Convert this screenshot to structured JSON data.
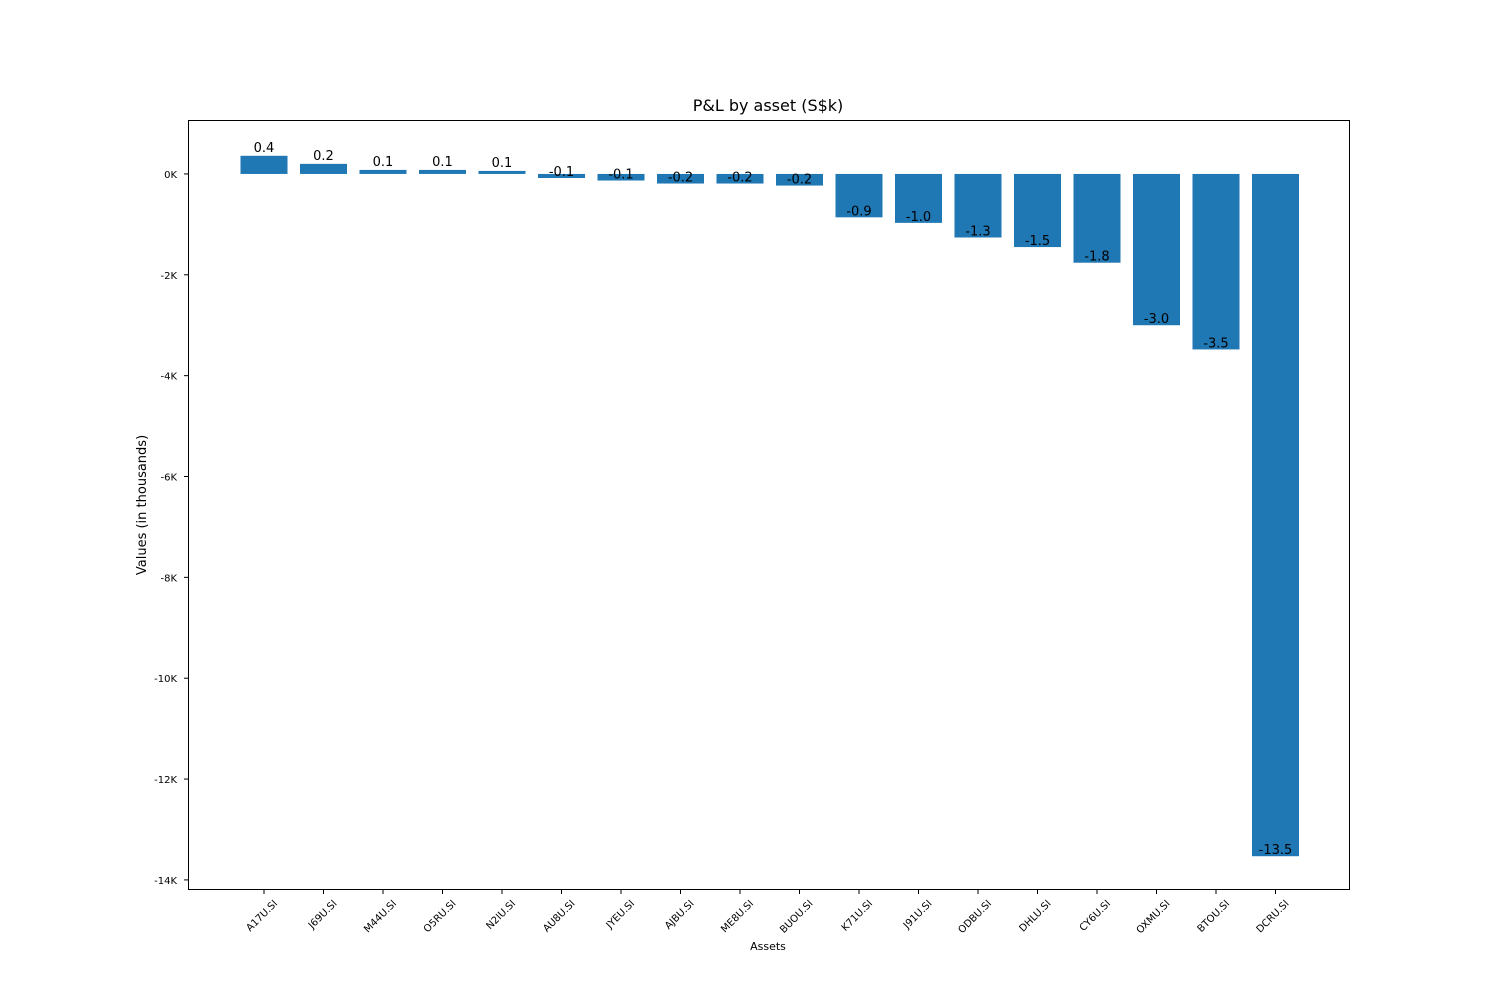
{
  "chart_data": {
    "type": "bar",
    "title": "P&L by asset (S$k)",
    "xlabel": "Assets",
    "ylabel": "Values (in thousands)",
    "ylim": [
      -14.2,
      1.05
    ],
    "yticks": [
      0,
      -2,
      -4,
      -6,
      -8,
      -10,
      -12,
      -14
    ],
    "ytick_labels": [
      "0K",
      "-2K",
      "-4K",
      "-6K",
      "-8K",
      "-10K",
      "-12K",
      "-14K"
    ],
    "categories": [
      "A17U.SI",
      "J69U.SI",
      "M44U.SI",
      "O5RU.SI",
      "N2IU.SI",
      "AU8U.SI",
      "JYEU.SI",
      "AJBU.SI",
      "ME8U.SI",
      "BUOU.SI",
      "K71U.SI",
      "J91U.SI",
      "ODBU.SI",
      "DHLU.SI",
      "CY6U.SI",
      "OXMU.SI",
      "BTOU.SI",
      "DCRU.SI"
    ],
    "values": [
      0.36,
      0.2,
      0.08,
      0.08,
      0.06,
      -0.08,
      -0.13,
      -0.19,
      -0.19,
      -0.23,
      -0.86,
      -0.97,
      -1.26,
      -1.45,
      -1.76,
      -3.0,
      -3.48,
      -13.53
    ],
    "data_labels": [
      "0.4",
      "0.2",
      "0.1",
      "0.1",
      "0.1",
      "-0.1",
      "-0.1",
      "-0.2",
      "-0.2",
      "-0.2",
      "-0.9",
      "-1.0",
      "-1.3",
      "-1.5",
      "-1.8",
      "-3.0",
      "-3.5",
      "-13.5"
    ],
    "bar_color": "#1f77b4"
  }
}
